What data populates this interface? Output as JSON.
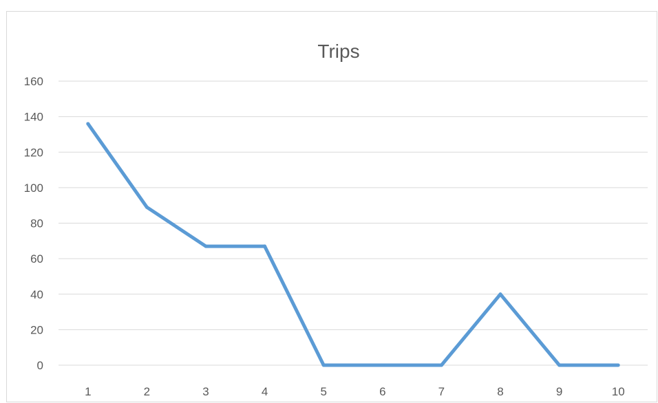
{
  "chart_data": {
    "type": "line",
    "title": "Trips",
    "xlabel": "",
    "ylabel": "",
    "x": [
      1,
      2,
      3,
      4,
      5,
      6,
      7,
      8,
      9,
      10
    ],
    "y_ticks": [
      0,
      20,
      40,
      60,
      80,
      100,
      120,
      140,
      160
    ],
    "ylim": [
      0,
      160
    ],
    "grid": "horizontal",
    "legend": "none",
    "series": [
      {
        "values": [
          136,
          89,
          67,
          67,
          0,
          0,
          0,
          40,
          0,
          0
        ],
        "color": "#5b9bd5"
      }
    ]
  }
}
